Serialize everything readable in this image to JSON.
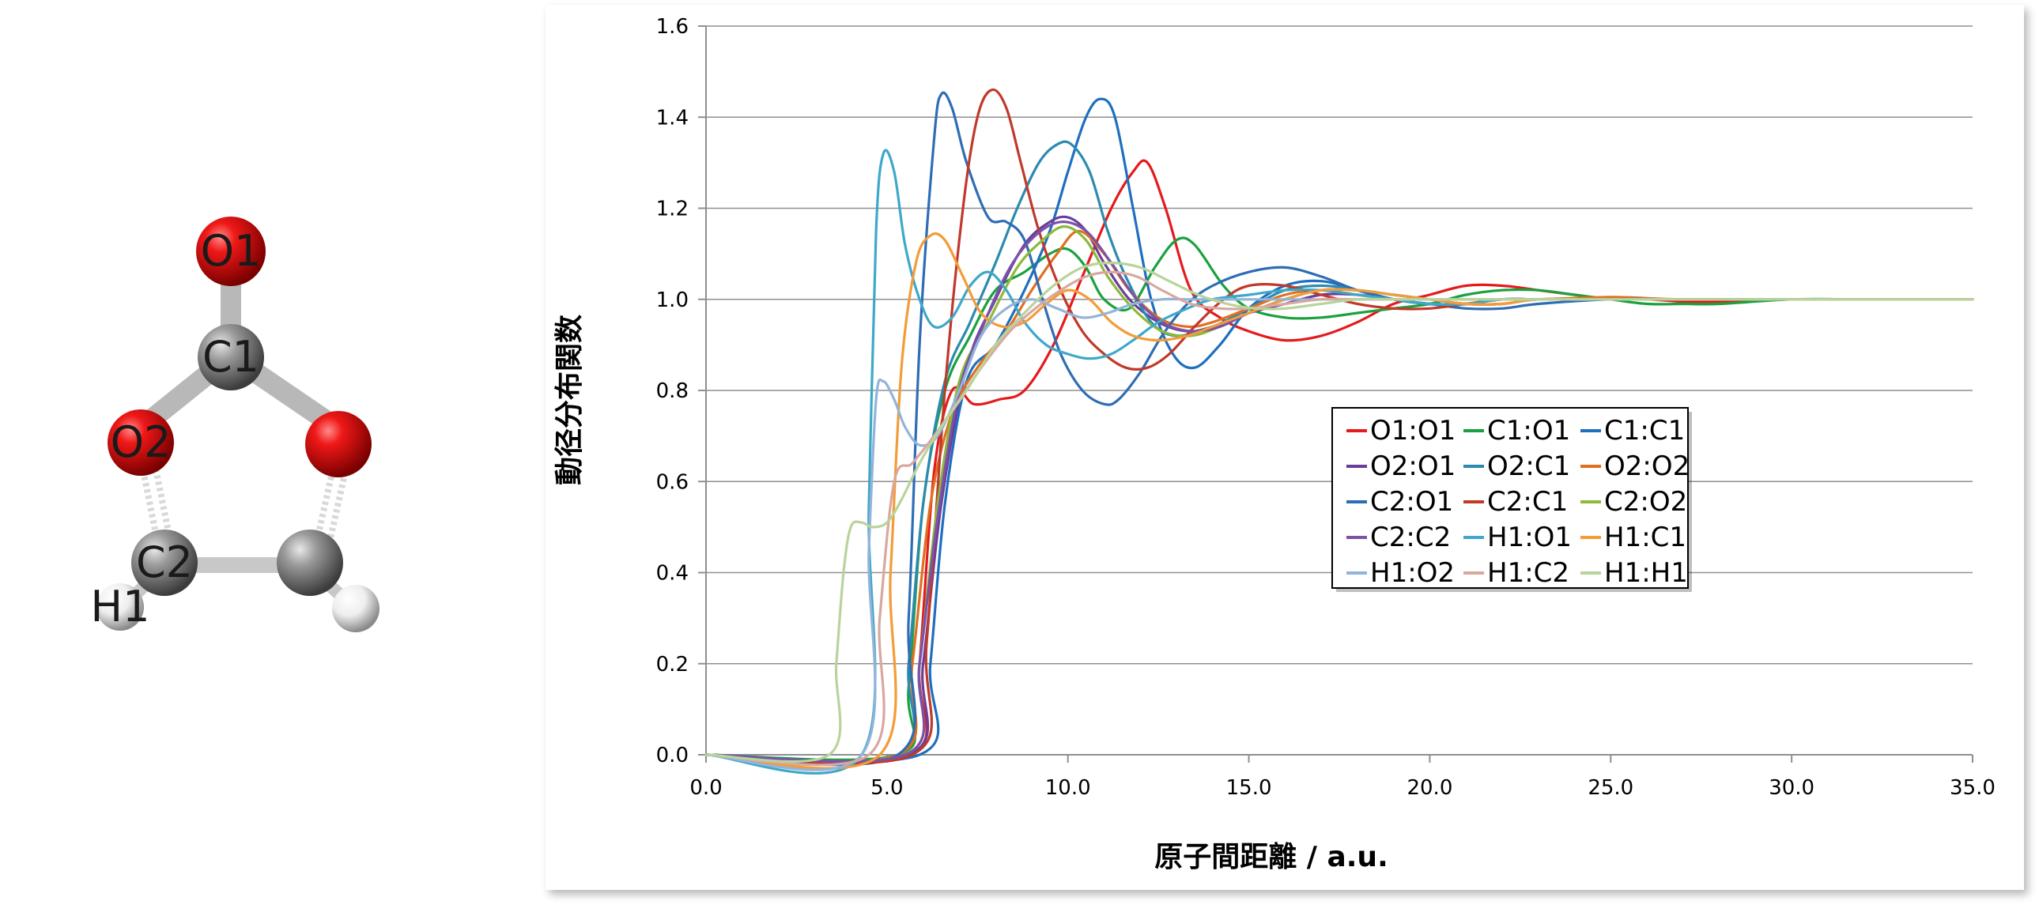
{
  "molecule": {
    "atoms": [
      {
        "id": "O1",
        "label": "O1",
        "element": "O"
      },
      {
        "id": "C1",
        "label": "C1",
        "element": "C"
      },
      {
        "id": "O2",
        "label": "O2",
        "element": "O"
      },
      {
        "id": "O3",
        "label": "",
        "element": "O"
      },
      {
        "id": "C2",
        "label": "C2",
        "element": "C"
      },
      {
        "id": "C3",
        "label": "",
        "element": "C"
      },
      {
        "id": "H1",
        "label": "H1",
        "element": "H"
      },
      {
        "id": "H2",
        "label": "",
        "element": "H"
      }
    ],
    "colors": {
      "O": "#e01010",
      "C": "#8c8c8c",
      "H": "#f2f2f2"
    }
  },
  "chart_data": {
    "type": "line",
    "xlabel": "原子間距離 / a.u.",
    "ylabel": "動径分布関数",
    "xlim": [
      0,
      35
    ],
    "ylim": [
      0,
      1.6
    ],
    "xticks": [
      0,
      5,
      10,
      15,
      20,
      25,
      30,
      35
    ],
    "xtick_labels": [
      "0.0",
      "5.0",
      "10.0",
      "15.0",
      "20.0",
      "25.0",
      "30.0",
      "35.0"
    ],
    "yticks": [
      0,
      0.2,
      0.4,
      0.6,
      0.8,
      1.0,
      1.2,
      1.4,
      1.6
    ],
    "ytick_labels": [
      "0.0",
      "0.2",
      "0.4",
      "0.6",
      "0.8",
      "1.0",
      "1.2",
      "1.4",
      "1.6"
    ],
    "grid": "horizontal",
    "legend_position": "right",
    "series": [
      {
        "name": "O1:O1",
        "color": "#e41a1c",
        "x": [
          0,
          5.6,
          5.9,
          6.3,
          6.8,
          7.4,
          8.1,
          8.8,
          9.6,
          10.4,
          11.2,
          11.8,
          12.2,
          12.7,
          13.4,
          14.2,
          15,
          16,
          17,
          18,
          19,
          20,
          21,
          22,
          23,
          24,
          25,
          26,
          27,
          28,
          30,
          32,
          35
        ],
        "y": [
          0,
          0,
          0.2,
          0.62,
          0.8,
          0.77,
          0.78,
          0.8,
          0.9,
          1.05,
          1.2,
          1.28,
          1.3,
          1.2,
          1.02,
          0.96,
          0.93,
          0.91,
          0.92,
          0.95,
          0.99,
          1.01,
          1.03,
          1.03,
          1.02,
          1.01,
          1,
          1,
          0.995,
          0.995,
          1,
          1,
          1
        ]
      },
      {
        "name": "C1:O1",
        "color": "#1aa13f",
        "x": [
          0,
          5.3,
          5.6,
          6,
          6.6,
          7.3,
          8,
          8.8,
          9.5,
          10,
          10.5,
          11,
          11.7,
          12.4,
          13,
          13.5,
          14.3,
          15,
          16,
          17,
          18,
          19,
          20,
          21,
          22,
          23,
          24,
          25,
          26,
          27,
          28,
          30,
          32,
          35
        ],
        "y": [
          0,
          0,
          0.15,
          0.55,
          0.8,
          0.92,
          1.02,
          1.06,
          1.1,
          1.11,
          1.07,
          1.0,
          0.98,
          1.07,
          1.13,
          1.12,
          1.03,
          0.98,
          0.96,
          0.96,
          0.97,
          0.98,
          0.99,
          1.01,
          1.02,
          1.02,
          1.01,
          1,
          0.99,
          0.99,
          0.99,
          1,
          1,
          1
        ]
      },
      {
        "name": "C1:C1",
        "color": "#1f6fbf",
        "x": [
          0,
          5.9,
          6.2,
          6.6,
          7.2,
          8,
          8.8,
          9.5,
          10,
          10.5,
          10.9,
          11.3,
          11.8,
          12.3,
          12.9,
          13.5,
          14.2,
          15,
          16,
          17,
          18,
          19,
          20,
          21,
          22,
          23,
          25,
          27,
          30,
          35
        ],
        "y": [
          0,
          0,
          0.2,
          0.55,
          0.82,
          0.9,
          1.02,
          1.15,
          1.28,
          1.4,
          1.44,
          1.4,
          1.2,
          1.0,
          0.88,
          0.85,
          0.9,
          0.98,
          1.03,
          1.04,
          1.02,
          1.0,
          0.99,
          0.99,
          1.0,
          1.0,
          1,
          1,
          1,
          1
        ]
      },
      {
        "name": "O2:O1",
        "color": "#6a3d9a",
        "x": [
          0,
          5.6,
          6,
          6.5,
          7.2,
          8,
          8.8,
          9.5,
          10,
          10.5,
          11,
          11.7,
          12.5,
          13.3,
          14,
          15,
          16,
          17,
          18,
          19,
          20,
          21,
          22,
          23,
          25,
          27,
          30,
          35
        ],
        "y": [
          0,
          0,
          0.2,
          0.55,
          0.85,
          1.0,
          1.12,
          1.17,
          1.18,
          1.15,
          1.08,
          1.0,
          0.95,
          0.93,
          0.94,
          0.97,
          0.99,
          1.01,
          1.01,
          1.0,
          0.99,
          0.99,
          1.0,
          1.0,
          1,
          1,
          1,
          1
        ]
      },
      {
        "name": "O2:C1",
        "color": "#2c8aaf",
        "x": [
          0,
          5.3,
          5.6,
          6,
          6.6,
          7.3,
          8,
          8.6,
          9.2,
          9.7,
          10.1,
          10.6,
          11.1,
          11.6,
          12.3,
          13,
          14,
          15,
          16,
          17,
          18,
          19,
          20,
          21,
          22,
          23,
          25,
          27,
          30,
          35
        ],
        "y": [
          0,
          0,
          0.2,
          0.55,
          0.82,
          0.95,
          1.08,
          1.2,
          1.3,
          1.34,
          1.34,
          1.28,
          1.15,
          1.05,
          0.95,
          0.92,
          0.94,
          0.98,
          1.02,
          1.03,
          1.02,
          1.0,
          0.99,
          0.99,
          1.0,
          1.0,
          1,
          1,
          1,
          1
        ]
      },
      {
        "name": "O2:O2",
        "color": "#e07020",
        "x": [
          0,
          5.3,
          5.7,
          6.2,
          6.8,
          7.5,
          8.3,
          9,
          9.7,
          10.3,
          11,
          11.7,
          12.5,
          13.3,
          14,
          15,
          16,
          17,
          18,
          19,
          20,
          21,
          22,
          23,
          25,
          27,
          30,
          35
        ],
        "y": [
          0,
          0,
          0.2,
          0.55,
          0.75,
          0.85,
          0.93,
          1.02,
          1.1,
          1.15,
          1.1,
          1.02,
          0.96,
          0.94,
          0.95,
          0.98,
          1.01,
          1.02,
          1.01,
          1.0,
          0.99,
          0.99,
          1.0,
          1.0,
          1.005,
          1,
          1,
          1
        ]
      },
      {
        "name": "C2:O1",
        "color": "#2e6db4",
        "x": [
          0,
          5.3,
          5.6,
          5.9,
          6.3,
          6.5,
          6.8,
          7.2,
          7.8,
          8.3,
          8.8,
          9.3,
          9.8,
          10.4,
          11,
          11.4,
          12,
          12.6,
          13.3,
          14,
          15,
          16,
          17,
          18,
          19,
          20,
          21,
          22,
          23,
          25,
          27,
          30,
          35
        ],
        "y": [
          0,
          0,
          0.3,
          0.9,
          1.35,
          1.45,
          1.42,
          1.3,
          1.18,
          1.17,
          1.13,
          1.0,
          0.88,
          0.8,
          0.77,
          0.78,
          0.84,
          0.92,
          0.99,
          1.03,
          1.06,
          1.07,
          1.05,
          1.02,
          1.0,
          0.99,
          0.98,
          0.98,
          0.99,
          1.0,
          1,
          1,
          1
        ]
      },
      {
        "name": "C2:C1",
        "color": "#c0392b",
        "x": [
          0,
          5.7,
          6.1,
          6.6,
          7.1,
          7.5,
          7.9,
          8.3,
          8.7,
          9.2,
          9.8,
          10.4,
          11,
          11.6,
          12.2,
          12.8,
          13.5,
          14.3,
          15,
          16,
          17,
          18,
          19,
          20,
          21,
          22,
          23,
          25,
          27,
          30,
          35
        ],
        "y": [
          0,
          0,
          0.25,
          0.8,
          1.2,
          1.4,
          1.46,
          1.42,
          1.3,
          1.15,
          1.02,
          0.93,
          0.88,
          0.85,
          0.85,
          0.88,
          0.94,
          1.0,
          1.03,
          1.03,
          1.01,
          0.99,
          0.98,
          0.98,
          0.99,
          1.0,
          1.0,
          1,
          1,
          1,
          1
        ]
      },
      {
        "name": "C2:O2",
        "color": "#8cb93a",
        "x": [
          0,
          5.5,
          5.9,
          6.4,
          7,
          7.8,
          8.6,
          9.3,
          9.9,
          10.5,
          11.1,
          11.8,
          12.6,
          13.4,
          14.2,
          15,
          16,
          17,
          18,
          19,
          20,
          21,
          22,
          23,
          25,
          27,
          30,
          35
        ],
        "y": [
          0,
          0,
          0.2,
          0.55,
          0.82,
          0.95,
          1.07,
          1.13,
          1.16,
          1.13,
          1.05,
          0.98,
          0.93,
          0.92,
          0.94,
          0.97,
          1.0,
          1.02,
          1.02,
          1.01,
          1.0,
          0.99,
          0.99,
          1.0,
          1,
          1,
          1,
          1
        ]
      },
      {
        "name": "C2:C2",
        "color": "#7b52a8",
        "x": [
          0,
          5.5,
          5.9,
          6.4,
          7,
          7.7,
          8.4,
          9.1,
          9.8,
          10.5,
          11.2,
          11.9,
          12.6,
          13.4,
          14.2,
          15,
          16,
          17,
          18,
          19,
          20,
          21,
          22,
          23,
          25,
          27,
          30,
          35
        ],
        "y": [
          0,
          0,
          0.2,
          0.52,
          0.8,
          0.95,
          1.07,
          1.14,
          1.17,
          1.15,
          1.08,
          1.0,
          0.95,
          0.93,
          0.94,
          0.97,
          1.0,
          1.02,
          1.02,
          1.01,
          1.0,
          0.99,
          0.99,
          1.0,
          1,
          1,
          1,
          1
        ]
      },
      {
        "name": "H1:O1",
        "color": "#3ea8c8",
        "x": [
          0,
          4.3,
          4.5,
          4.7,
          4.9,
          5.2,
          5.5,
          5.9,
          6.3,
          6.8,
          7.3,
          7.8,
          8.3,
          8.8,
          9.4,
          10,
          10.6,
          11.2,
          11.8,
          12.5,
          13.3,
          14,
          15,
          16,
          17,
          18,
          19,
          20,
          21,
          22,
          23,
          25,
          27,
          30,
          35
        ],
        "y": [
          0,
          0,
          0.55,
          1.15,
          1.32,
          1.28,
          1.12,
          1.0,
          0.94,
          0.96,
          1.03,
          1.06,
          1.02,
          0.95,
          0.9,
          0.88,
          0.87,
          0.88,
          0.91,
          0.95,
          0.98,
          1.0,
          1.01,
          1.02,
          1.02,
          1.01,
          1.0,
          0.99,
          0.99,
          1.0,
          1.0,
          1,
          1,
          1,
          1
        ]
      },
      {
        "name": "H1:C1",
        "color": "#f39c38",
        "x": [
          0,
          4.8,
          5.1,
          5.4,
          5.8,
          6.2,
          6.6,
          7.1,
          7.6,
          8.2,
          8.8,
          9.4,
          10,
          10.6,
          11.2,
          11.8,
          12.5,
          13.3,
          14,
          15,
          16,
          17,
          18,
          19,
          20,
          21,
          22,
          23,
          25,
          27,
          30,
          35
        ],
        "y": [
          0,
          0,
          0.4,
          0.85,
          1.08,
          1.14,
          1.13,
          1.05,
          0.97,
          0.94,
          0.95,
          0.99,
          1.02,
          1.0,
          0.95,
          0.92,
          0.91,
          0.92,
          0.94,
          0.97,
          1.0,
          1.02,
          1.02,
          1.01,
          1.0,
          0.99,
          0.99,
          1.0,
          1,
          1,
          1,
          1
        ]
      },
      {
        "name": "H1:O2",
        "color": "#92b4d9",
        "x": [
          0,
          4.3,
          4.5,
          4.7,
          4.9,
          5.2,
          5.5,
          5.9,
          6.4,
          7,
          7.6,
          8.3,
          9,
          9.7,
          10.4,
          11.1,
          11.8,
          12.6,
          13.4,
          14.2,
          15,
          16,
          17,
          18,
          19,
          20,
          21,
          22,
          23,
          25,
          27,
          30,
          35
        ],
        "y": [
          0,
          0,
          0.45,
          0.78,
          0.82,
          0.78,
          0.72,
          0.68,
          0.7,
          0.8,
          0.92,
          0.98,
          1.0,
          0.98,
          0.96,
          0.97,
          0.99,
          1.0,
          1.0,
          1.0,
          1.0,
          1.0,
          1.0,
          1.0,
          1.0,
          1.0,
          1.0,
          1.0,
          1.0,
          1,
          1,
          1,
          1
        ]
      },
      {
        "name": "H1:C2",
        "color": "#d8a8a0",
        "x": [
          0,
          4.5,
          4.8,
          5.2,
          5.7,
          6.3,
          7,
          7.7,
          8.4,
          9.1,
          9.8,
          10.5,
          11.2,
          11.9,
          12.6,
          13.4,
          14.2,
          15,
          16,
          17,
          18,
          19,
          20,
          21,
          22,
          23,
          25,
          27,
          30,
          35
        ],
        "y": [
          0,
          0,
          0.3,
          0.6,
          0.64,
          0.7,
          0.78,
          0.86,
          0.93,
          0.98,
          1.02,
          1.05,
          1.06,
          1.05,
          1.02,
          0.99,
          0.98,
          0.98,
          0.99,
          1.0,
          1.0,
          1.0,
          1.0,
          1.0,
          1.0,
          1.0,
          1,
          1,
          1,
          1
        ]
      },
      {
        "name": "H1:H1",
        "color": "#b8d49a",
        "x": [
          0,
          3.4,
          3.6,
          3.8,
          4,
          4.3,
          4.6,
          5,
          5.4,
          5.9,
          6.5,
          7.2,
          8,
          8.8,
          9.6,
          10.4,
          11.2,
          12,
          12.8,
          13.6,
          14.4,
          15.2,
          16,
          17,
          18,
          19,
          20,
          21,
          22,
          23,
          25,
          27,
          30,
          35
        ],
        "y": [
          0,
          0,
          0.2,
          0.4,
          0.5,
          0.51,
          0.5,
          0.51,
          0.56,
          0.64,
          0.72,
          0.8,
          0.9,
          0.97,
          1.03,
          1.07,
          1.08,
          1.07,
          1.04,
          1.01,
          0.99,
          0.98,
          0.98,
          0.99,
          1.0,
          1.0,
          1.0,
          1.0,
          1.0,
          1.0,
          1,
          1,
          1,
          1
        ]
      }
    ]
  }
}
